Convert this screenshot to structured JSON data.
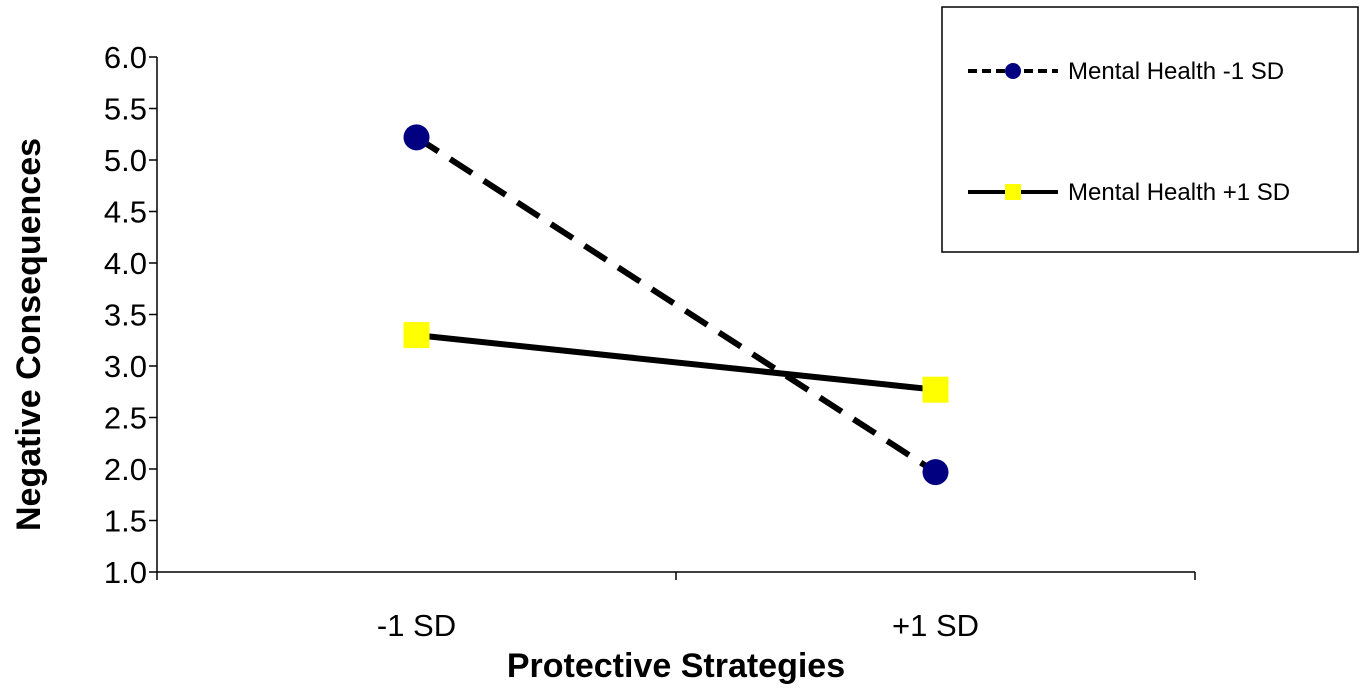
{
  "chart_data": {
    "type": "line",
    "title": "",
    "xlabel": "Protective Strategies",
    "ylabel": "Negative Consequences",
    "categories": [
      "-1 SD",
      "+1 SD"
    ],
    "y_ticks": [
      "1.0",
      "1.5",
      "2.0",
      "2.5",
      "3.0",
      "3.5",
      "4.0",
      "4.5",
      "5.0",
      "5.5",
      "6.0"
    ],
    "ylim": [
      1.0,
      6.0
    ],
    "grid": false,
    "legend_position": "top-right",
    "series": [
      {
        "name": "Mental Health -1 SD",
        "values": [
          5.22,
          1.97
        ],
        "line_style": "dashed",
        "marker": "circle",
        "line_color": "#000000",
        "marker_color": "#000080"
      },
      {
        "name": "Mental Health +1 SD",
        "values": [
          3.3,
          2.77
        ],
        "line_style": "solid",
        "marker": "square",
        "line_color": "#000000",
        "marker_color": "#FFFF00"
      }
    ]
  }
}
